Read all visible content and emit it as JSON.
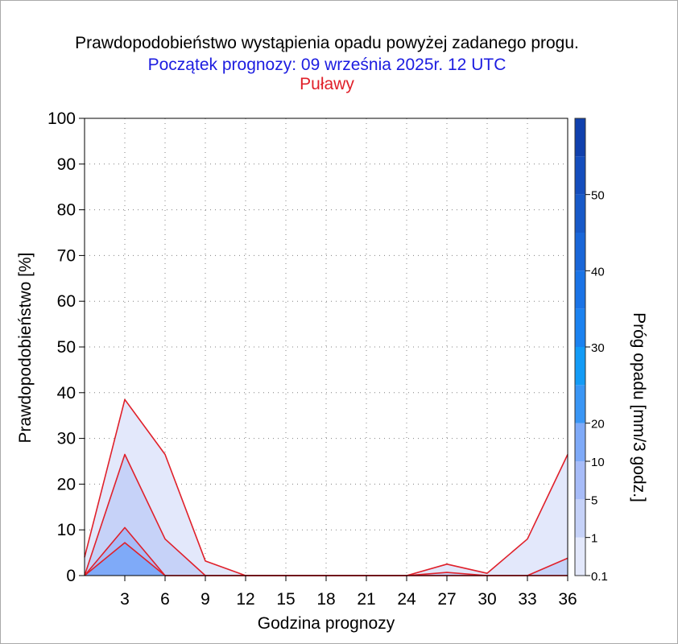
{
  "chart_data": {
    "type": "area",
    "title": "Prawdopodobieństwo wystąpienia opadu powyżej zadanego progu.",
    "subtitle": "Początek prognozy: 09 września 2025r. 12 UTC",
    "location": "Puławy",
    "xlabel": "Godzina prognozy",
    "ylabel": "Prawdopodobieństwo [%]",
    "xlim": [
      0,
      36
    ],
    "ylim": [
      0,
      100
    ],
    "xticks": [
      3,
      6,
      9,
      12,
      15,
      18,
      21,
      24,
      27,
      30,
      33,
      36
    ],
    "yticks": [
      0,
      10,
      20,
      30,
      40,
      50,
      60,
      70,
      80,
      90,
      100
    ],
    "grid": true,
    "x": [
      0,
      3,
      6,
      9,
      12,
      15,
      18,
      21,
      24,
      27,
      30,
      33,
      36
    ],
    "series": [
      {
        "threshold": 0.1,
        "color": "#e3e8fb",
        "values": [
          4,
          38.5,
          26.5,
          3.2,
          0,
          0,
          0,
          0,
          0,
          2.5,
          0.5,
          8,
          26.5
        ]
      },
      {
        "threshold": 1,
        "color": "#c6d2f8",
        "values": [
          0,
          26.5,
          8,
          0,
          0,
          0,
          0,
          0,
          0,
          0.7,
          0,
          0,
          3.8
        ]
      },
      {
        "threshold": 5,
        "color": "#a7bcf8",
        "values": [
          0,
          10.5,
          0,
          0,
          0,
          0,
          0,
          0,
          0,
          0,
          0,
          0,
          0
        ]
      },
      {
        "threshold": 10,
        "color": "#7faaf8",
        "values": [
          0,
          7.2,
          0,
          0,
          0,
          0,
          0,
          0,
          0,
          0,
          0,
          0,
          0
        ]
      }
    ],
    "colorbar": {
      "label": "Próg opadu [mm/3 godz.]",
      "tick_labels": [
        "0.1",
        "1",
        "5",
        "10",
        "20",
        "30",
        "40",
        "50"
      ],
      "bands": [
        {
          "from": 0.1,
          "to": 1,
          "color": "#e3e8fb"
        },
        {
          "from": 1,
          "to": 5,
          "color": "#c6d2f8"
        },
        {
          "from": 5,
          "to": 10,
          "color": "#a7bcf8"
        },
        {
          "from": 10,
          "to": 20,
          "color": "#7faaf8"
        },
        {
          "from": 20,
          "to": 25,
          "color": "#3a96f5"
        },
        {
          "from": 25,
          "to": 30,
          "color": "#139bf6"
        },
        {
          "from": 30,
          "to": 35,
          "color": "#1b82f0"
        },
        {
          "from": 35,
          "to": 40,
          "color": "#1a73e6"
        },
        {
          "from": 40,
          "to": 45,
          "color": "#1966d8"
        },
        {
          "from": 45,
          "to": 50,
          "color": "#1759c8"
        },
        {
          "from": 50,
          "to": 55,
          "color": "#144dbd"
        },
        {
          "from": 55,
          "to": 60,
          "color": "#1040ad"
        }
      ]
    },
    "line_color": "#e0202a"
  }
}
